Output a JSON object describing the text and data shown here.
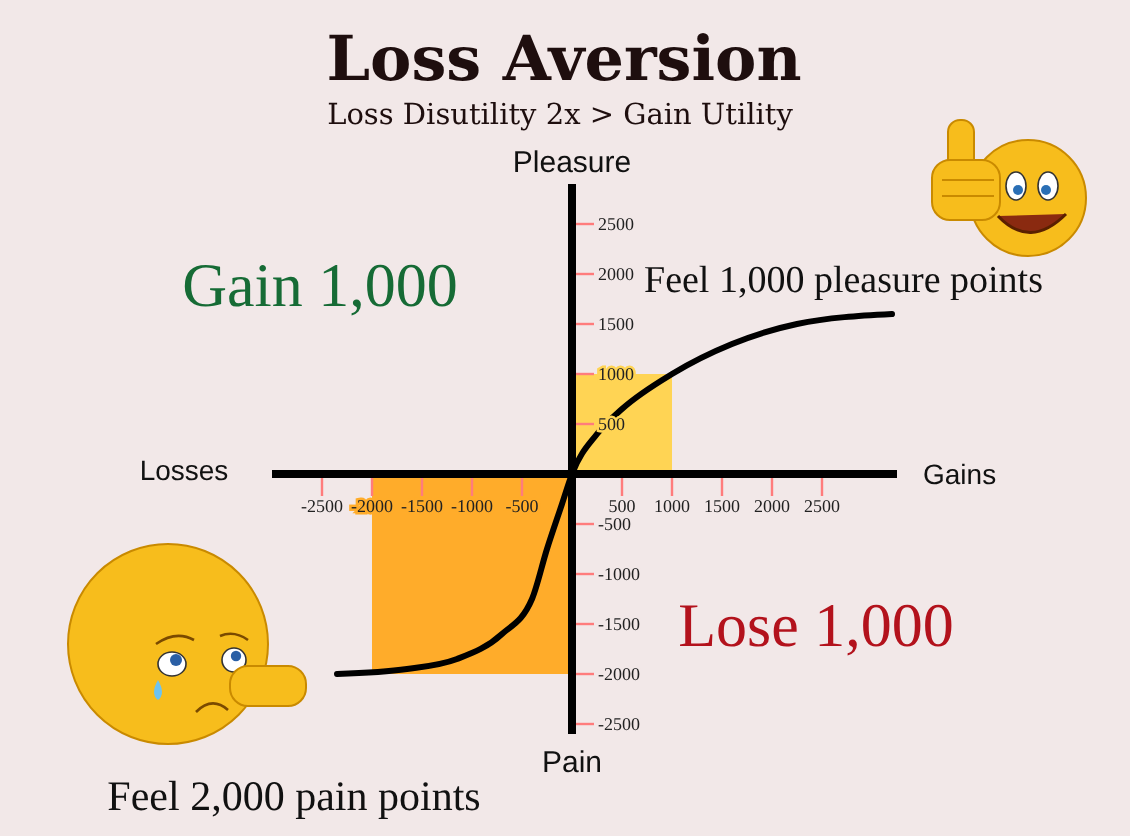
{
  "chart_data": {
    "type": "line",
    "title": "Loss Aversion",
    "subtitle": "Loss Disutility 2x > Gain Utility",
    "xlabel": "Gains",
    "ylabel": "Pleasure",
    "annotations": [
      "Losses",
      "Pain",
      "Gain 1,000",
      "Feel 1,000 pleasure points",
      "Lose 1,000",
      "Feel 2,000 pain points"
    ],
    "xlim": [
      -3000,
      3250
    ],
    "ylim": [
      -2600,
      2900
    ],
    "xticks": [
      -2500,
      -2000,
      -1500,
      -1000,
      -500,
      500,
      1000,
      1500,
      2000,
      2500
    ],
    "yticks": [
      -2500,
      -2000,
      -1500,
      -1000,
      -500,
      500,
      1000,
      1500,
      2000,
      2500
    ],
    "series": [
      {
        "type": "area",
        "color": "#ffd454",
        "x": [
          0,
          1000
        ],
        "values": [
          1000,
          1000
        ]
      },
      {
        "type": "area",
        "color": "#ffac2a",
        "x": [
          -2000,
          0
        ],
        "values": [
          -2000,
          -2000
        ]
      },
      {
        "color": "#000000",
        "x": [
          -2350,
          -1650,
          -1150,
          -700,
          -400,
          -250,
          -100,
          0,
          250,
          500,
          1000,
          1600,
          2250,
          3200
        ],
        "values": [
          -2000,
          -1950,
          -1850,
          -1600,
          -1250,
          -750,
          -300,
          0,
          400,
          650,
          1000,
          1300,
          1500,
          1600
        ]
      }
    ]
  }
}
